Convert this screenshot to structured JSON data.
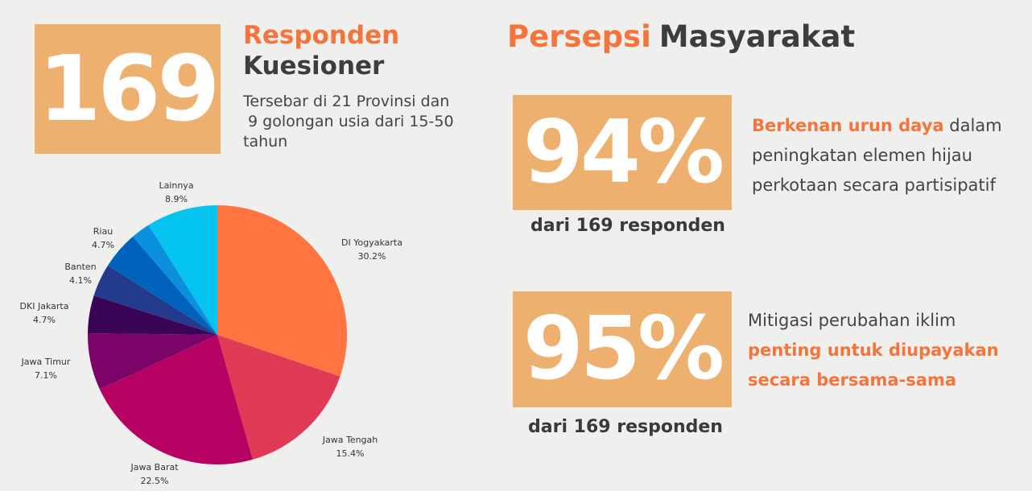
{
  "respondents": {
    "number": "169",
    "title_orange": "Responden",
    "title_dark": "Kuesioner",
    "description": "Tersebar di 21 Provinsi dan\n 9 golongan usia dari 15-50\ntahun"
  },
  "perception": {
    "title_orange": "Persepsi",
    "title_dark": "Masyarakat",
    "stat1": {
      "value": "94%",
      "caption": "dari 169 responden",
      "highlight": "Berkenan urun daya",
      "text_after": " dalam",
      "line2": "peningkatan elemen hijau",
      "line3": "perkotaan secara partisipatif"
    },
    "stat2": {
      "value": "95%",
      "caption": "dari 169 responden",
      "line1": "Mitigasi perubahan iklim",
      "highlight1": "penting untuk diupayakan",
      "highlight2": "secara bersama-sama"
    }
  },
  "colors": {
    "accent": "#f4743b",
    "box": "#eeb06f",
    "text": "#3d3d3d",
    "background": "#efefed"
  },
  "chart_data": {
    "type": "pie",
    "title": "",
    "slices": [
      {
        "label": "DI Yogyakarta",
        "value": 30.2,
        "display": "30.2%",
        "color": "#ff7441"
      },
      {
        "label": "Jawa Tengah",
        "value": 15.4,
        "display": "15.4%",
        "color": "#e13a56"
      },
      {
        "label": "Jawa Barat",
        "value": 22.5,
        "display": "22.5%",
        "color": "#b80263"
      },
      {
        "label": "Jawa Timur",
        "value": 7.1,
        "display": "7.1%",
        "color": "#7c0468"
      },
      {
        "label": "DKI Jakarta",
        "value": 4.7,
        "display": "4.7%",
        "color": "#3a0557"
      },
      {
        "label": "Banten",
        "value": 4.1,
        "display": "4.1%",
        "color": "#243a8c"
      },
      {
        "label": "Riau",
        "value": 4.7,
        "display": "4.7%",
        "color": "#0062bb"
      },
      {
        "label": "",
        "value": 2.4,
        "display": "",
        "color": "#0a90dc"
      },
      {
        "label": "Lainnya",
        "value": 8.9,
        "display": "8.9%",
        "color": "#05c4ef"
      }
    ]
  }
}
